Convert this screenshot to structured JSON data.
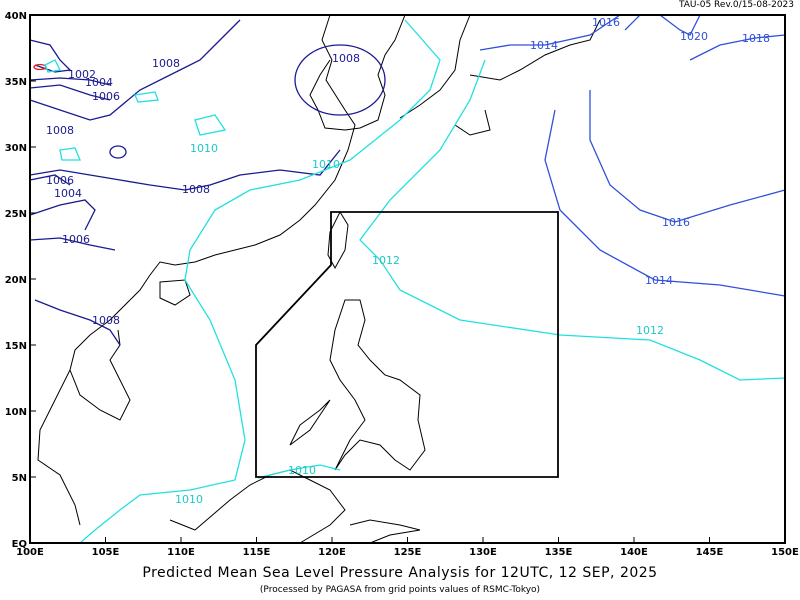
{
  "header": {
    "revision": "TAU-05 Rev.0/15-08-2023"
  },
  "footer": {
    "title": "Predicted Mean Sea Level Pressure Analysis for 12UTC, 12 SEP, 2025",
    "subtitle": "(Processed by PAGASA from grid points values of RSMC-Tokyo)"
  },
  "map": {
    "extent": {
      "lon": [
        100,
        150
      ],
      "lat": [
        0,
        40
      ]
    },
    "lon_ticks": [
      "100E",
      "105E",
      "110E",
      "115E",
      "120E",
      "125E",
      "130E",
      "135E",
      "140E",
      "145E",
      "150E"
    ],
    "lat_ticks": [
      "EQ",
      "5N",
      "10N",
      "15N",
      "20N",
      "25N",
      "30N",
      "35N",
      "40N"
    ],
    "par_boundary": [
      [
        120,
        25
      ],
      [
        135,
        25
      ],
      [
        135,
        5
      ],
      [
        115,
        5
      ],
      [
        115,
        15
      ],
      [
        120,
        21
      ],
      [
        120,
        25
      ]
    ],
    "colors": {
      "low": "#1a1a90",
      "mid": "#22e0e0",
      "high": "#3050d8",
      "min": "#e02020",
      "coast": "#000000"
    },
    "isobar_labels": [
      "1002",
      "1004",
      "1006",
      "1008",
      "1008",
      "1008",
      "1008",
      "1006",
      "1004",
      "1006",
      "1008",
      "1010",
      "1010",
      "1010",
      "1010",
      "1012",
      "1012",
      "1014",
      "1014",
      "1016",
      "1016",
      "1020",
      "1018"
    ]
  }
}
